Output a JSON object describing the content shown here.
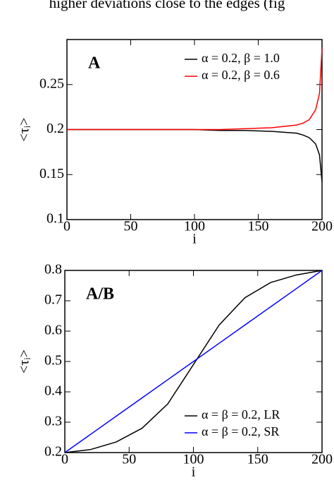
{
  "caption": "higher deviations close to the edges (fig",
  "chart_data": [
    {
      "type": "line",
      "panel_label": "A",
      "x_label": "i",
      "y_label": "<τᵢ>",
      "xlim": [
        0,
        200
      ],
      "xticks": [
        0,
        50,
        100,
        150,
        200
      ],
      "ylim": [
        0.1,
        0.3
      ],
      "yticks": [
        0.1,
        0.15,
        0.2,
        0.25
      ],
      "legend": "upper right",
      "x": [
        0,
        20,
        40,
        60,
        80,
        100,
        120,
        140,
        160,
        180,
        185,
        190,
        195,
        198,
        200
      ],
      "series": [
        {
          "name": "α = 0.2, β = 1.0",
          "color": "#000000",
          "values": [
            0.2,
            0.2,
            0.2,
            0.2,
            0.2,
            0.2,
            0.199,
            0.199,
            0.198,
            0.196,
            0.194,
            0.191,
            0.184,
            0.172,
            0.142
          ]
        },
        {
          "name": "α = 0.2, β = 0.6",
          "color": "#ff0000",
          "values": [
            0.2,
            0.2,
            0.2,
            0.2,
            0.2,
            0.2,
            0.2,
            0.201,
            0.202,
            0.205,
            0.207,
            0.211,
            0.222,
            0.24,
            0.29
          ]
        }
      ]
    },
    {
      "type": "line",
      "panel_label": "A/B",
      "x_label": "i",
      "y_label": "<τᵢ>",
      "xlim": [
        0,
        200
      ],
      "xticks": [
        0,
        50,
        100,
        150,
        200
      ],
      "ylim": [
        0.2,
        0.8
      ],
      "yticks": [
        0.2,
        0.3,
        0.4,
        0.5,
        0.6,
        0.7,
        0.8
      ],
      "legend": "lower right",
      "x": [
        0,
        20,
        40,
        60,
        80,
        100,
        120,
        140,
        160,
        180,
        200
      ],
      "series": [
        {
          "name": "α = β = 0.2, LR",
          "color": "#000000",
          "values": [
            0.2,
            0.21,
            0.235,
            0.28,
            0.36,
            0.49,
            0.62,
            0.71,
            0.76,
            0.785,
            0.8
          ]
        },
        {
          "name": "α = β = 0.2, SR",
          "color": "#0000ff",
          "values": [
            0.2,
            0.26,
            0.32,
            0.38,
            0.44,
            0.5,
            0.56,
            0.62,
            0.68,
            0.74,
            0.8
          ]
        }
      ]
    }
  ]
}
